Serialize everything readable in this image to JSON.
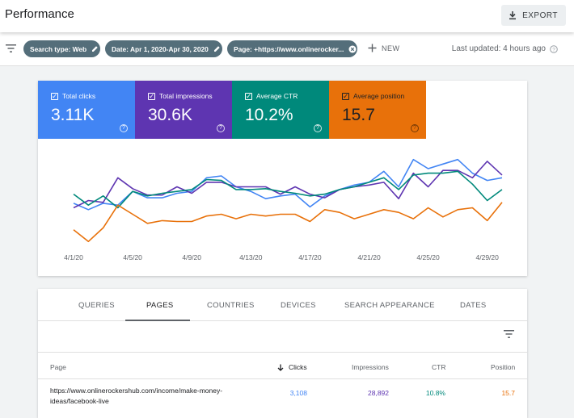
{
  "header": {
    "title": "Performance",
    "export_label": "EXPORT"
  },
  "filters": {
    "chips": [
      {
        "label": "Search type: Web",
        "icon": "pencil-icon"
      },
      {
        "label": "Date: Apr 1, 2020-Apr 30, 2020",
        "icon": "pencil-icon"
      },
      {
        "label": "Page: +https://www.onlinerocker...",
        "icon": "close-circle-icon"
      }
    ],
    "new_label": "NEW",
    "last_updated": "Last updated: 4 hours ago"
  },
  "metrics": [
    {
      "label": "Total clicks",
      "value": "3.11K",
      "color": "#4285f4"
    },
    {
      "label": "Total impressions",
      "value": "30.6K",
      "color": "#5e35b1"
    },
    {
      "label": "Average CTR",
      "value": "10.2%",
      "color": "#00897b"
    },
    {
      "label": "Average position",
      "value": "15.7",
      "color": "#e8710a"
    }
  ],
  "chart_data": {
    "type": "line",
    "x": [
      "4/1/20",
      "4/2/20",
      "4/3/20",
      "4/4/20",
      "4/5/20",
      "4/6/20",
      "4/7/20",
      "4/8/20",
      "4/9/20",
      "4/10/20",
      "4/11/20",
      "4/12/20",
      "4/13/20",
      "4/14/20",
      "4/15/20",
      "4/16/20",
      "4/17/20",
      "4/18/20",
      "4/19/20",
      "4/20/20",
      "4/21/20",
      "4/22/20",
      "4/23/20",
      "4/24/20",
      "4/25/20",
      "4/26/20",
      "4/27/20",
      "4/28/20",
      "4/29/20",
      "4/30/20"
    ],
    "xticks": [
      "4/1/20",
      "4/5/20",
      "4/9/20",
      "4/13/20",
      "4/17/20",
      "4/21/20",
      "4/25/20",
      "4/29/20"
    ],
    "series": [
      {
        "name": "Total clicks",
        "color": "#4285f4",
        "values": [
          0.47,
          0.4,
          0.47,
          0.45,
          0.6,
          0.53,
          0.53,
          0.58,
          0.6,
          0.75,
          0.77,
          0.65,
          0.6,
          0.52,
          0.55,
          0.57,
          0.43,
          0.55,
          0.62,
          0.67,
          0.7,
          0.82,
          0.65,
          0.95,
          0.85,
          0.9,
          0.95,
          0.8,
          0.72,
          0.75
        ]
      },
      {
        "name": "Total impressions",
        "color": "#5e35b1",
        "values": [
          0.42,
          0.5,
          0.48,
          0.75,
          0.63,
          0.56,
          0.56,
          0.65,
          0.58,
          0.7,
          0.7,
          0.65,
          0.65,
          0.65,
          0.57,
          0.65,
          0.57,
          0.53,
          0.62,
          0.65,
          0.67,
          0.7,
          0.52,
          0.8,
          0.65,
          0.83,
          0.83,
          0.75,
          0.93,
          0.78
        ]
      },
      {
        "name": "Average CTR",
        "color": "#00897b",
        "values": [
          0.57,
          0.45,
          0.55,
          0.42,
          0.6,
          0.55,
          0.58,
          0.6,
          0.62,
          0.73,
          0.72,
          0.62,
          0.62,
          0.63,
          0.6,
          0.58,
          0.55,
          0.57,
          0.62,
          0.65,
          0.7,
          0.75,
          0.62,
          0.78,
          0.8,
          0.8,
          0.82,
          0.68,
          0.5,
          0.62
        ]
      },
      {
        "name": "Average position",
        "color": "#e8710a",
        "values": [
          0.18,
          0.05,
          0.2,
          0.45,
          0.35,
          0.25,
          0.28,
          0.27,
          0.27,
          0.33,
          0.35,
          0.3,
          0.35,
          0.33,
          0.35,
          0.35,
          0.27,
          0.4,
          0.37,
          0.3,
          0.35,
          0.4,
          0.37,
          0.3,
          0.42,
          0.32,
          0.4,
          0.42,
          0.28,
          0.48
        ]
      }
    ],
    "ylim": [
      0,
      1
    ],
    "grid": false
  },
  "tabs": [
    "QUERIES",
    "PAGES",
    "COUNTRIES",
    "DEVICES",
    "SEARCH APPEARANCE",
    "DATES"
  ],
  "active_tab": "PAGES",
  "table": {
    "headers": {
      "page": "Page",
      "clicks": "Clicks",
      "impressions": "Impressions",
      "ctr": "CTR",
      "position": "Position"
    },
    "rows": [
      {
        "page": "https://www.onlinerockershub.com/income/make-money-ideas/facebook-live",
        "clicks": "3,108",
        "impressions": "28,892",
        "ctr": "10.8%",
        "position": "15.7"
      }
    ]
  }
}
